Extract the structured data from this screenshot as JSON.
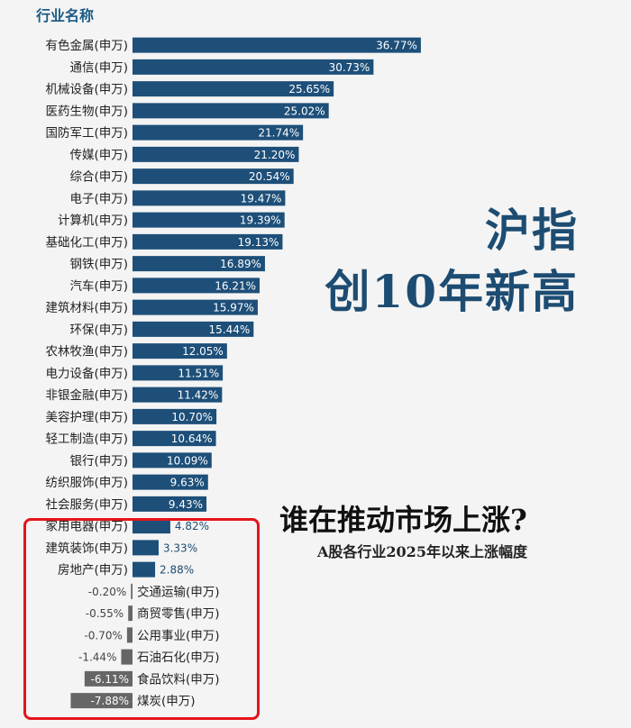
{
  "header": {
    "column_title": "行业名称"
  },
  "titles": {
    "main_line1": "沪指",
    "main_line2": "创10年新高",
    "sub": "谁在推动市场上涨?",
    "caption": "A股各行业2025年以来上涨幅度"
  },
  "colors": {
    "bar_positive": "#1d4f79",
    "bar_negative": "#666666",
    "highlight_border": "#e5141b",
    "header_text": "#1c5b85"
  },
  "chart_data": {
    "type": "bar",
    "orientation": "horizontal",
    "unit": "%",
    "categories": [
      "有色金属(申万)",
      "通信(申万)",
      "机械设备(申万)",
      "医药生物(申万)",
      "国防军工(申万)",
      "传媒(申万)",
      "综合(申万)",
      "电子(申万)",
      "计算机(申万)",
      "基础化工(申万)",
      "钢铁(申万)",
      "汽车(申万)",
      "建筑材料(申万)",
      "环保(申万)",
      "农林牧渔(申万)",
      "电力设备(申万)",
      "非银金融(申万)",
      "美容护理(申万)",
      "轻工制造(申万)",
      "银行(申万)",
      "纺织服饰(申万)",
      "社会服务(申万)",
      "家用电器(申万)",
      "建筑装饰(申万)",
      "房地产(申万)",
      "交通运输(申万)",
      "商贸零售(申万)",
      "公用事业(申万)",
      "石油石化(申万)",
      "食品饮料(申万)",
      "煤炭(申万)"
    ],
    "values": [
      36.77,
      30.73,
      25.65,
      25.02,
      21.74,
      21.2,
      20.54,
      19.47,
      19.39,
      19.13,
      16.89,
      16.21,
      15.97,
      15.44,
      12.05,
      11.51,
      11.42,
      10.7,
      10.64,
      10.09,
      9.63,
      9.43,
      4.82,
      3.33,
      2.88,
      -0.2,
      -0.55,
      -0.7,
      -1.44,
      -6.11,
      -7.88
    ],
    "value_labels": [
      "36.77%",
      "30.73%",
      "25.65%",
      "25.02%",
      "21.74%",
      "21.20%",
      "20.54%",
      "19.47%",
      "19.39%",
      "19.13%",
      "16.89%",
      "16.21%",
      "15.97%",
      "15.44%",
      "12.05%",
      "11.51%",
      "11.42%",
      "10.70%",
      "10.64%",
      "10.09%",
      "9.63%",
      "9.43%",
      "4.82%",
      "3.33%",
      "2.88%",
      "-0.20%",
      "-0.55%",
      "-0.70%",
      "-1.44%",
      "-6.11%",
      "-7.88%"
    ],
    "highlighted_categories": [
      "家用电器(申万)",
      "建筑装饰(申万)",
      "房地产(申万)",
      "交通运输(申万)",
      "商贸零售(申万)",
      "公用事业(申万)",
      "石油石化(申万)",
      "食品饮料(申万)",
      "煤炭(申万)"
    ],
    "grid": false,
    "legend": "none"
  }
}
